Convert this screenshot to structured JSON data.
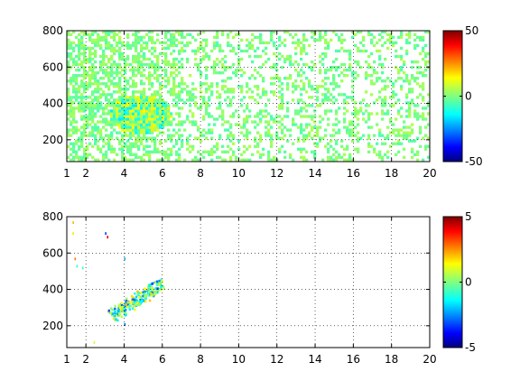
{
  "chart_data": [
    {
      "type": "heatmap",
      "title": "",
      "xlabel": "",
      "ylabel": "",
      "xlim": [
        1,
        20
      ],
      "ylim": [
        80,
        800
      ],
      "grid": true,
      "x_ticks": [
        1,
        2,
        4,
        6,
        8,
        10,
        12,
        14,
        16,
        18,
        20
      ],
      "y_ticks": [
        200,
        400,
        600,
        800
      ],
      "colorbar": {
        "min": -50,
        "max": 50,
        "ticks": [
          50,
          0,
          -50
        ],
        "colormap": "jet"
      },
      "description_values": {
        "background_level": 0,
        "dense_region_x": [
          1,
          7
        ],
        "hot_cluster_center": [
          4.8,
          330
        ],
        "hot_cluster_value_range": [
          -15,
          15
        ]
      }
    },
    {
      "type": "heatmap",
      "title": "",
      "xlabel": "",
      "ylabel": "",
      "xlim": [
        1,
        20
      ],
      "ylim": [
        80,
        800
      ],
      "grid": true,
      "x_ticks": [
        1,
        2,
        4,
        6,
        8,
        10,
        12,
        14,
        16,
        18,
        20
      ],
      "y_ticks": [
        200,
        400,
        600,
        800
      ],
      "colorbar": {
        "min": -5,
        "max": 5,
        "ticks": [
          5,
          0,
          -5
        ],
        "colormap": "jet"
      },
      "description_values": {
        "band_start": [
          3.3,
          250
        ],
        "band_end": [
          5.9,
          420
        ],
        "band_value_range": [
          -3,
          2
        ]
      }
    }
  ]
}
